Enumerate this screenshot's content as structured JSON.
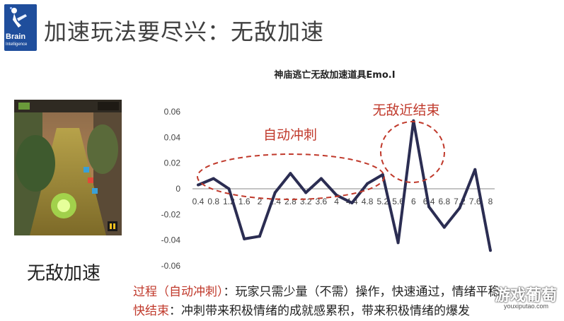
{
  "logo": {
    "word": "Brain",
    "sub": "Intelligence"
  },
  "page_title": "加速玩法要尽兴：无敌加速",
  "left_caption": "无敌加速",
  "notes": {
    "line1_label": "过程（自动冲刺）",
    "line1_text": "：玩家只需少量（不需）操作，快速通过，情绪平稳",
    "line2_label": "快结束",
    "line2_text": "：冲刺带来积极情绪的成就感累积，带来积极情绪的爆发"
  },
  "watermark": {
    "text": "游戏葡萄",
    "url": "youxiputao.com"
  },
  "colors": {
    "line": "#2b2d52",
    "annotation": "#c0392b"
  },
  "chart_data": {
    "type": "line",
    "title": "神庙逃亡无敌加速道具Emo.I",
    "xlabel": "",
    "ylabel": "",
    "ylim": [
      -0.06,
      0.06
    ],
    "yticks": [
      "0.06",
      "0.04",
      "0.02",
      "0",
      "-0.02",
      "-0.04",
      "-0.06"
    ],
    "categories": [
      "0.4",
      "0.8",
      "1.2",
      "1.6",
      "2",
      "2.4",
      "2.8",
      "3.2",
      "3.6",
      "4",
      "4.4",
      "4.8",
      "5.2",
      "5.6",
      "6",
      "6.4",
      "6.8",
      "7.2",
      "7.6",
      "8"
    ],
    "series": [
      {
        "values": [
          0.003,
          0.008,
          0.0,
          -0.039,
          -0.037,
          -0.003,
          0.012,
          -0.003,
          0.008,
          -0.005,
          -0.011,
          0.004,
          0.011,
          -0.042,
          0.053,
          -0.014,
          -0.03,
          -0.015,
          0.015,
          -0.048
        ]
      }
    ],
    "grid": false,
    "annotations": [
      {
        "text": "自动冲刺",
        "shape": "ellipse"
      },
      {
        "text": "无敌近结束",
        "shape": "ellipse"
      }
    ]
  }
}
